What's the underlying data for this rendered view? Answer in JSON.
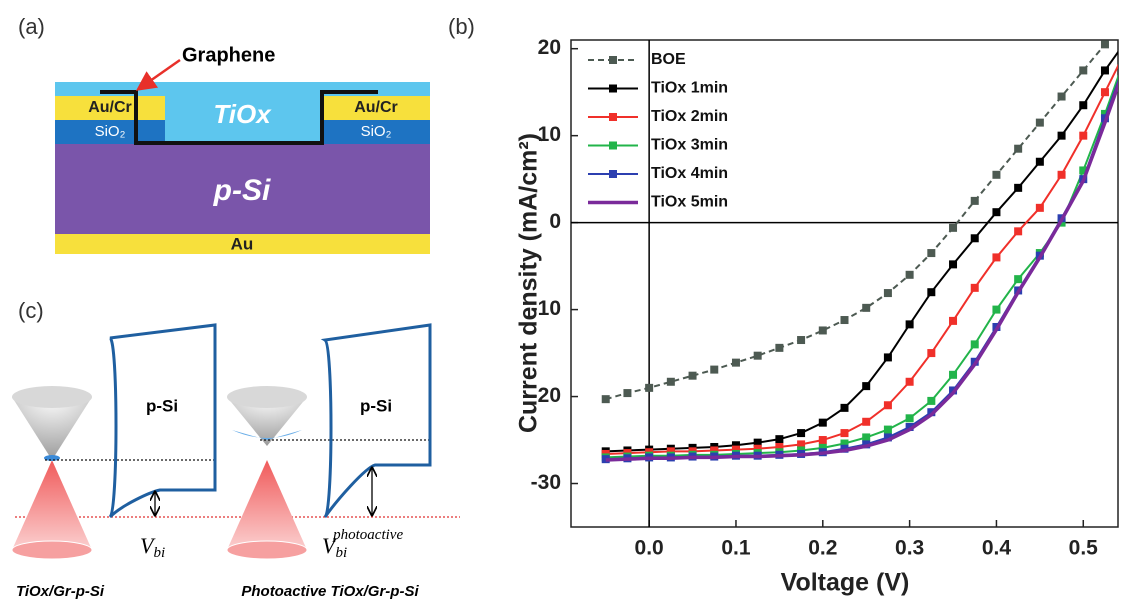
{
  "panel_a": {
    "label": "(a)",
    "graphene": "Graphene",
    "tiox": "TiOx",
    "au_cr": [
      "Au/Cr",
      "Au/Cr"
    ],
    "sio2": [
      "SiO₂",
      "SiO₂"
    ],
    "p_si": "p-Si",
    "au": "Au"
  },
  "panel_c": {
    "label": "(c)",
    "p_si": [
      "p-Si",
      "p-Si"
    ],
    "vbi": {
      "symbol": "V",
      "subscript": "bi"
    },
    "vbi_photo": {
      "symbol": "V",
      "subscript": "bi",
      "superscript": "photoactive"
    },
    "captions": [
      "TiOx/Gr-p-Si",
      "Photoactive TiOx/Gr-p-Si"
    ]
  },
  "chart_data": {
    "type": "line",
    "panel_label": "(b)",
    "x_label": "Voltage (V)",
    "y_label": "Current density (mA/cm²)",
    "xlim": [
      -0.09,
      0.54
    ],
    "ylim": [
      -35,
      21
    ],
    "xticks": [
      {
        "value": 0,
        "label": "0.0"
      },
      0.1,
      0.2,
      0.3,
      0.4,
      0.5
    ],
    "yticks": [
      -30,
      -20,
      -10,
      0,
      10,
      20
    ],
    "zero_lines": true,
    "legend": "upper-left",
    "x": [
      -0.05,
      -0.025,
      0,
      0.025,
      0.05,
      0.075,
      0.1,
      0.125,
      0.15,
      0.175,
      0.2,
      0.225,
      0.25,
      0.275,
      0.3,
      0.325,
      0.35,
      0.375,
      0.4,
      0.425,
      0.45,
      0.475,
      0.5,
      0.525,
      0.55
    ],
    "series": [
      {
        "name": "BOE",
        "color": "#4d5a52",
        "marker": "square",
        "dash": true,
        "values": [
          -20.3,
          -19.6,
          -19,
          -18.3,
          -17.6,
          -16.9,
          -16.1,
          -15.3,
          -14.4,
          -13.5,
          -12.4,
          -11.2,
          -9.8,
          -8.1,
          -6,
          -3.5,
          -0.6,
          2.5,
          5.5,
          8.5,
          11.5,
          14.5,
          17.5,
          20.5,
          null
        ]
      },
      {
        "name": "TiOx 1min",
        "color": "#000000",
        "marker": "square",
        "dash": false,
        "values": [
          -26.3,
          -26.2,
          -26.1,
          -26,
          -25.9,
          -25.8,
          -25.6,
          -25.3,
          -24.9,
          -24.2,
          -23,
          -21.3,
          -18.8,
          -15.5,
          -11.7,
          -8,
          -4.8,
          -1.8,
          1.2,
          4,
          7,
          10,
          13.5,
          17.5,
          21
        ]
      },
      {
        "name": "TiOx 2min",
        "color": "#f0302a",
        "marker": "square",
        "dash": false,
        "values": [
          -26.6,
          -26.5,
          -26.4,
          -26.3,
          -26.3,
          -26.2,
          -26.1,
          -26,
          -25.8,
          -25.5,
          -25,
          -24.2,
          -22.9,
          -21,
          -18.3,
          -15,
          -11.3,
          -7.5,
          -4,
          -1,
          1.7,
          5.5,
          10,
          15,
          20
        ]
      },
      {
        "name": "TiOx 3min",
        "color": "#22b44a",
        "marker": "square",
        "dash": false,
        "values": [
          -27,
          -26.9,
          -26.8,
          -26.8,
          -26.7,
          -26.7,
          -26.6,
          -26.5,
          -26.4,
          -26.2,
          -25.9,
          -25.4,
          -24.7,
          -23.8,
          -22.5,
          -20.5,
          -17.5,
          -14,
          -10,
          -6.5,
          -3.5,
          0,
          6,
          12.5,
          19.5
        ]
      },
      {
        "name": "TiOx 4min",
        "color": "#2c3fb0",
        "marker": "square",
        "dash": false,
        "values": [
          -27.2,
          -27.1,
          -27,
          -27,
          -26.9,
          -26.9,
          -26.8,
          -26.8,
          -26.7,
          -26.6,
          -26.4,
          -26,
          -25.5,
          -24.7,
          -23.5,
          -21.8,
          -19.3,
          -16,
          -12,
          -7.8,
          -3.8,
          0.5,
          5,
          12,
          19
        ]
      },
      {
        "name": "TiOx 5min",
        "color": "#7a2a9a",
        "marker": "none",
        "dash": false,
        "values": [
          -27.3,
          -27.2,
          -27.1,
          -27.1,
          -27,
          -27,
          -26.9,
          -26.9,
          -26.8,
          -26.7,
          -26.5,
          -26.2,
          -25.7,
          -25,
          -23.8,
          -22.1,
          -19.6,
          -16.3,
          -12.3,
          -8,
          -4,
          0.3,
          4.8,
          11.5,
          18.5
        ]
      }
    ]
  }
}
